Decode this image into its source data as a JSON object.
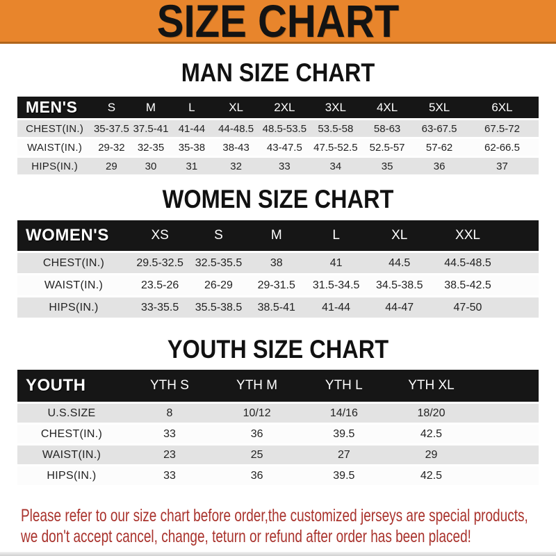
{
  "banner": {
    "title": "SIZE CHART"
  },
  "colors": {
    "banner_bg": "#E8852C",
    "banner_edge": "#B0651C",
    "header_band": "#161616",
    "row_gray": "#E3E3E3",
    "notice_red": "#A9322C"
  },
  "sections": [
    {
      "title": "MAN SIZE CHART",
      "corner": "MEN'S",
      "columns": [
        "S",
        "M",
        "L",
        "XL",
        "2XL",
        "3XL",
        "4XL",
        "5XL",
        "6XL"
      ],
      "rows": [
        {
          "label": "CHEST(IN.)",
          "values": [
            "35-37.5",
            "37.5-41",
            "41-44",
            "44-48.5",
            "48.5-53.5",
            "53.5-58",
            "58-63",
            "63-67.5",
            "67.5-72"
          ]
        },
        {
          "label": "WAIST(IN.)",
          "values": [
            "29-32",
            "32-35",
            "35-38",
            "38-43",
            "43-47.5",
            "47.5-52.5",
            "52.5-57",
            "57-62",
            "62-66.5"
          ]
        },
        {
          "label": "HIPS(IN.)",
          "values": [
            "29",
            "30",
            "31",
            "32",
            "33",
            "34",
            "35",
            "36",
            "37"
          ]
        }
      ]
    },
    {
      "title": "WOMEN SIZE CHART",
      "corner": "WOMEN'S",
      "columns": [
        "XS",
        "S",
        "M",
        "L",
        "XL",
        "XXL"
      ],
      "rows": [
        {
          "label": "CHEST(IN.)",
          "values": [
            "29.5-32.5",
            "32.5-35.5",
            "38",
            "41",
            "44.5",
            "44.5-48.5"
          ]
        },
        {
          "label": "WAIST(IN.)",
          "values": [
            "23.5-26",
            "26-29",
            "29-31.5",
            "31.5-34.5",
            "34.5-38.5",
            "38.5-42.5"
          ]
        },
        {
          "label": "HIPS(IN.)",
          "values": [
            "33-35.5",
            "35.5-38.5",
            "38.5-41",
            "41-44",
            "44-47",
            "47-50"
          ]
        }
      ]
    },
    {
      "title": "YOUTH SIZE CHART",
      "corner": "YOUTH",
      "columns": [
        "YTH S",
        "YTH M",
        "YTH L",
        "YTH XL"
      ],
      "rows": [
        {
          "label": "U.S.SIZE",
          "values": [
            "8",
            "10/12",
            "14/16",
            "18/20"
          ]
        },
        {
          "label": "CHEST(IN.)",
          "values": [
            "33",
            "36",
            "39.5",
            "42.5"
          ]
        },
        {
          "label": "WAIST(IN.)",
          "values": [
            "23",
            "25",
            "27",
            "29"
          ]
        },
        {
          "label": "HIPS(IN.)",
          "values": [
            "33",
            "36",
            "39.5",
            "42.5"
          ]
        }
      ]
    }
  ],
  "footer": {
    "line1": "Please refer to our size chart before order,the customized jerseys are special products,",
    "line2": "we don't accept cancel, change, teturn or refund after order has been placed!"
  }
}
